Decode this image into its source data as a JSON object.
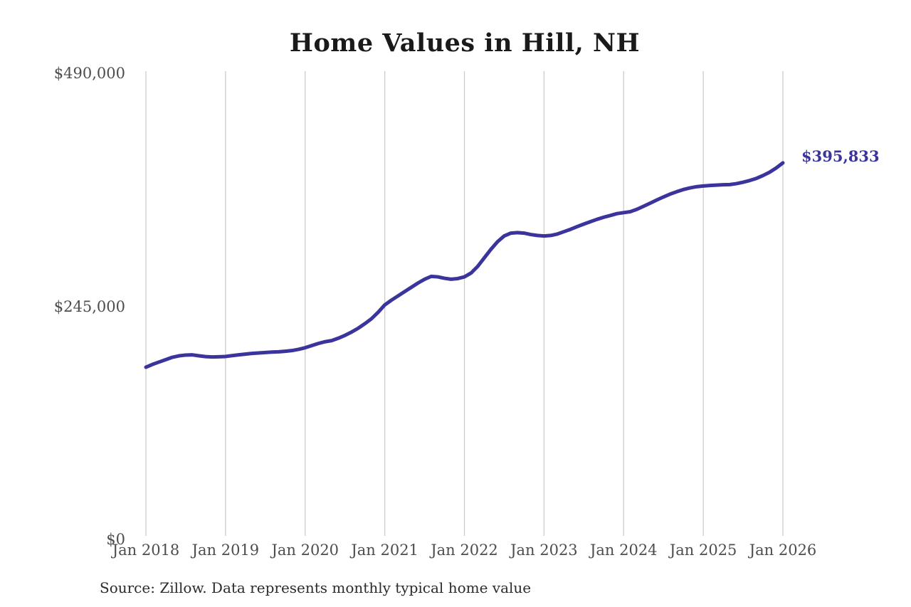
{
  "title": "Home Values in Hill, NH",
  "source_note": "Source: Zillow. Data represents monthly typical home value",
  "annotation": {
    "final_value_label": "$395,833"
  },
  "colors": {
    "line": "#3a349c",
    "end_label_text": "#3a349c",
    "grid": "#cccccc",
    "axis_text": "#4d4d4d",
    "title_text": "#1a1a1a",
    "source_text": "#2b2b2b",
    "background": "#ffffff"
  },
  "y_axis": {
    "ticks": [
      {
        "label": "$0",
        "value": 0
      },
      {
        "label": "$245,000",
        "value": 245000
      },
      {
        "label": "$490,000",
        "value": 490000
      }
    ]
  },
  "x_axis": {
    "ticks": [
      "Jan 2018",
      "Jan 2019",
      "Jan 2020",
      "Jan 2021",
      "Jan 2022",
      "Jan 2023",
      "Jan 2024",
      "Jan 2025",
      "Jan 2026"
    ]
  },
  "chart_data": {
    "type": "line",
    "title": "Home Values in Hill, NH",
    "series_name": "Monthly typical home value, Hill, NH (USD)",
    "x_start": "Jan 2018",
    "x_end": "Jan 2026",
    "x_interval": "1 month",
    "x_tick_labels": [
      "Jan 2018",
      "Jan 2019",
      "Jan 2020",
      "Jan 2021",
      "Jan 2022",
      "Jan 2023",
      "Jan 2024",
      "Jan 2025",
      "Jan 2026"
    ],
    "ylim": [
      0,
      490000
    ],
    "y_tick_values": [
      0,
      245000,
      490000
    ],
    "grid": "vertical-only",
    "legend": "none",
    "final_value": 395833,
    "values": [
      181000,
      184000,
      186500,
      189000,
      191500,
      193000,
      193800,
      194000,
      193000,
      192200,
      191800,
      192000,
      192300,
      193200,
      194000,
      194800,
      195500,
      196000,
      196500,
      196900,
      197200,
      197800,
      198500,
      199800,
      201500,
      203800,
      206000,
      207800,
      209000,
      211500,
      214500,
      218000,
      222000,
      226800,
      232000,
      238800,
      246500,
      251500,
      256000,
      260500,
      265000,
      269500,
      273500,
      276500,
      276000,
      274500,
      273500,
      274200,
      276000,
      280000,
      287000,
      296000,
      305000,
      313000,
      319000,
      322000,
      322500,
      322000,
      320500,
      319500,
      319000,
      319500,
      321000,
      323500,
      326000,
      328800,
      331500,
      334000,
      336500,
      338700,
      340500,
      342500,
      343500,
      344500,
      347000,
      350200,
      353500,
      356800,
      360000,
      363000,
      365500,
      367800,
      369500,
      370800,
      371500,
      372100,
      372500,
      372800,
      373000,
      374000,
      375500,
      377300,
      379500,
      382500,
      386000,
      390500,
      395833
    ]
  }
}
